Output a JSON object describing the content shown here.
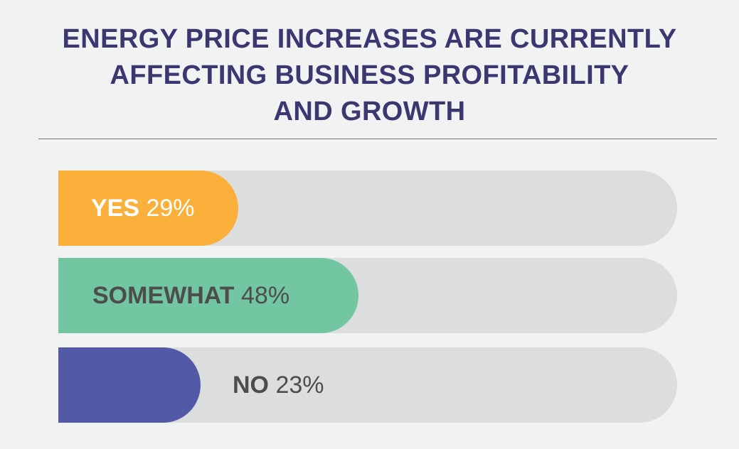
{
  "chart_data": {
    "type": "bar",
    "orientation": "horizontal",
    "title_lines": [
      "ENERGY PRICE INCREASES ARE CURRENTLY",
      "AFFECTING BUSINESS PROFITABILITY",
      "AND GROWTH"
    ],
    "categories": [
      "YES",
      "SOMEWHAT",
      "NO"
    ],
    "values": [
      29,
      48,
      23
    ],
    "value_labels": [
      "29%",
      "48%",
      "23%"
    ],
    "xlim": [
      0,
      100
    ],
    "grid": false,
    "legend": "none"
  },
  "colors": {
    "background": "#f1f2f2",
    "title": "#3c3770",
    "divider": "#7b6f7b",
    "track": "#dcdddd",
    "bars": [
      "#fbb03b",
      "#72c7a2",
      "#525aa7"
    ],
    "label_on_yellow": "#ffffff",
    "label_default": "#4d4d4d"
  }
}
